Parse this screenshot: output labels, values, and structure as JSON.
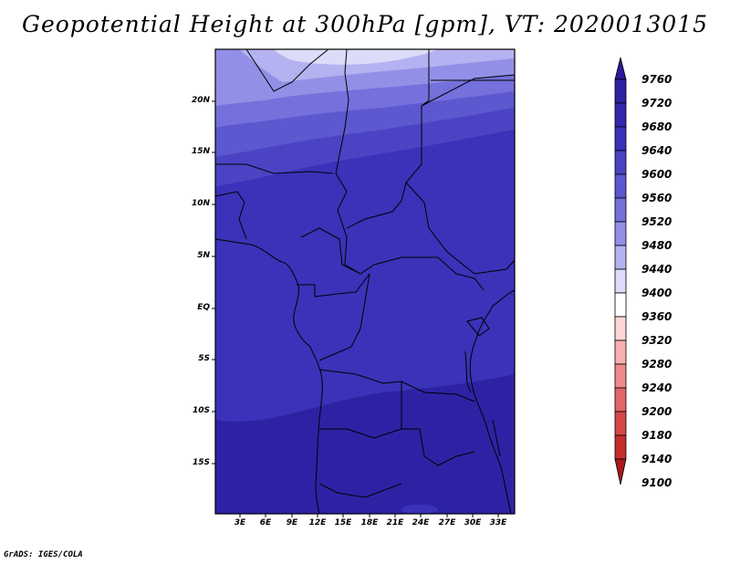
{
  "title": "Geopotential Height at 300hPa [gpm], VT: 2020013015",
  "footer": "GrADS: IGES/COLA",
  "map": {
    "lat_ticks": [
      "20N",
      "15N",
      "10N",
      "5N",
      "EQ",
      "5S",
      "10S",
      "15S"
    ],
    "lon_ticks": [
      "3E",
      "6E",
      "9E",
      "12E",
      "15E",
      "18E",
      "21E",
      "24E",
      "27E",
      "30E",
      "33E"
    ]
  },
  "colorbar": {
    "levels": [
      "9760",
      "9720",
      "9680",
      "9640",
      "9600",
      "9560",
      "9520",
      "9480",
      "9440",
      "9400",
      "9360",
      "9320",
      "9280",
      "9240",
      "9200",
      "9180",
      "9140",
      "9100"
    ],
    "colors": [
      "#2a1a9a",
      "#2e22a4",
      "#3328ae",
      "#3a32b8",
      "#4a44c4",
      "#5c58d0",
      "#7470dc",
      "#9290e6",
      "#b4b2f0",
      "#dcdcf8",
      "#ffffff",
      "#fcd6d6",
      "#f7b0b0",
      "#ee8a8a",
      "#e26666",
      "#d64646",
      "#c62c2c",
      "#a81818"
    ]
  }
}
